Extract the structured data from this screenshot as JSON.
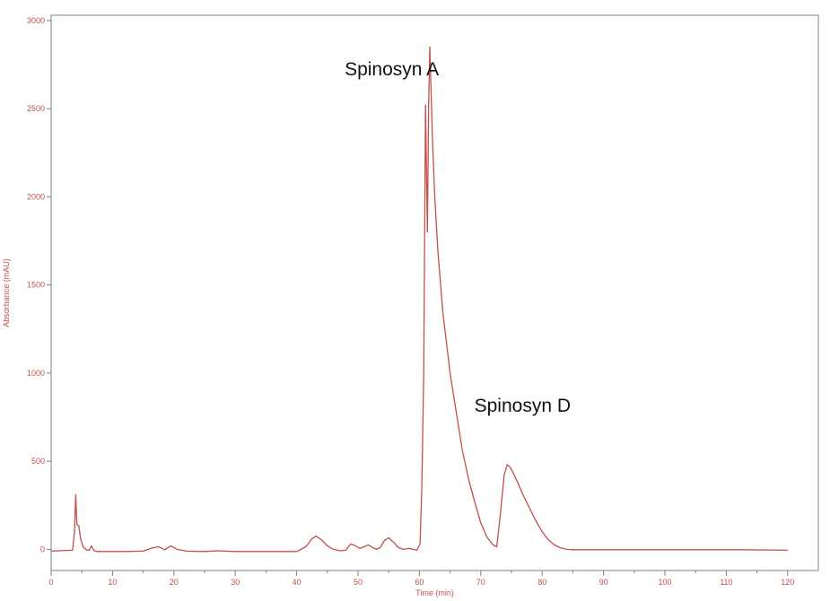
{
  "chart_data": {
    "type": "line",
    "title": "",
    "xlabel": "Time (min)",
    "ylabel": "Absorbance (mAU)",
    "xlim": [
      0,
      125
    ],
    "ylim": [
      -120,
      3030
    ],
    "x_ticks": [
      0,
      10,
      20,
      30,
      40,
      50,
      60,
      70,
      80,
      90,
      100,
      110,
      120
    ],
    "x_tick_labels": [
      "0",
      "10",
      "20",
      "30",
      "40",
      "50",
      "60",
      "70",
      "80",
      "90",
      "100",
      "110",
      "120"
    ],
    "y_ticks": [
      0,
      500,
      1000,
      1500,
      2000,
      2500,
      3000
    ],
    "y_tick_labels": [
      "0",
      "500",
      "1000",
      "1500",
      "2000",
      "2500",
      "3000"
    ],
    "grid": false,
    "line_color": "#c0504d",
    "annotations": [
      {
        "text": "Spinosyn A",
        "x": 55.5,
        "y": 2690
      },
      {
        "text": "Spinosyn D",
        "x": 76.8,
        "y": 780
      }
    ],
    "series": [
      {
        "x": [
          0,
          3.5,
          3.8,
          4.0,
          4.2,
          4.5,
          4.8,
          5.2,
          5.7,
          6.2,
          6.6,
          6.8,
          7.0,
          7.5,
          9,
          12,
          15,
          16.5,
          17.5,
          18.5,
          19.5,
          20.5,
          22,
          25,
          27,
          30,
          35,
          40,
          41.5,
          42.5,
          43.2,
          44,
          45,
          46,
          47,
          48,
          48.8,
          49.6,
          50.3,
          51,
          51.7,
          52.4,
          53,
          53.6,
          54.3,
          55,
          55.8,
          56.6,
          57.4,
          58.2,
          59,
          59.6,
          60.1,
          60.4,
          60.7,
          61.0,
          61.3,
          61.5,
          61.7,
          61.9,
          62.1,
          62.5,
          63,
          63.8,
          65,
          66,
          67,
          68,
          69,
          70,
          71,
          72,
          72.6,
          73.2,
          73.8,
          74.3,
          74.7,
          75.2,
          76,
          77,
          78,
          79,
          80,
          81,
          82,
          83,
          84,
          85,
          88,
          95,
          105,
          112,
          120
        ],
        "y": [
          -10,
          -5,
          100,
          310,
          140,
          135,
          60,
          15,
          -2,
          -5,
          20,
          5,
          -8,
          -12,
          -12,
          -12,
          -10,
          8,
          15,
          -2,
          20,
          0,
          -10,
          -12,
          -8,
          -12,
          -12,
          -12,
          15,
          60,
          75,
          55,
          20,
          0,
          -8,
          -5,
          30,
          20,
          5,
          15,
          25,
          10,
          0,
          10,
          50,
          65,
          40,
          10,
          0,
          5,
          0,
          -5,
          30,
          350,
          1000,
          2520,
          1800,
          2520,
          2850,
          2600,
          2350,
          2000,
          1700,
          1350,
          1000,
          780,
          560,
          400,
          270,
          150,
          70,
          25,
          15,
          200,
          420,
          480,
          470,
          440,
          380,
          300,
          230,
          160,
          100,
          55,
          25,
          8,
          0,
          -2,
          -2,
          -2,
          -2,
          -2,
          -5
        ]
      }
    ]
  }
}
